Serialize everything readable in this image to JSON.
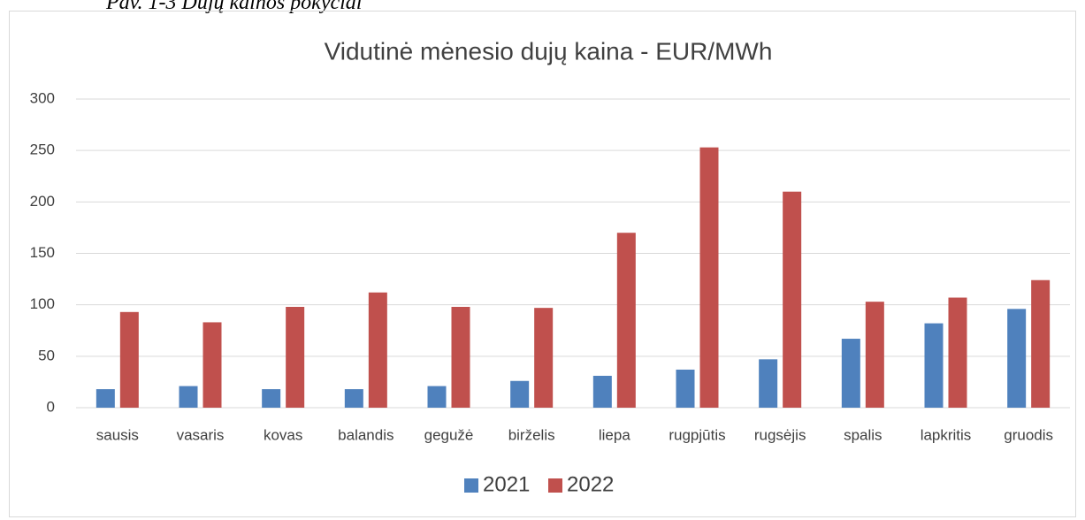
{
  "caption": "Pav. 1-3 Dujų kainos pokyčiai",
  "chart_data": {
    "type": "bar",
    "title": "Vidutinė mėnesio dujų kaina - EUR/MWh",
    "categories": [
      "sausis",
      "vasaris",
      "kovas",
      "balandis",
      "gegužė",
      "birželis",
      "liepa",
      "rugpjūtis",
      "rugsėjis",
      "spalis",
      "lapkritis",
      "gruodis"
    ],
    "series": [
      {
        "name": "2021",
        "color": "#4f81bd",
        "values": [
          18,
          21,
          18,
          18,
          21,
          26,
          31,
          37,
          47,
          67,
          82,
          96
        ]
      },
      {
        "name": "2022",
        "color": "#c0504d",
        "values": [
          93,
          83,
          98,
          112,
          98,
          97,
          170,
          253,
          210,
          103,
          107,
          124
        ]
      }
    ],
    "ylim": [
      0,
      300
    ],
    "yticks": [
      0,
      50,
      100,
      150,
      200,
      250,
      300
    ],
    "grid": true,
    "legend": "bottom"
  }
}
